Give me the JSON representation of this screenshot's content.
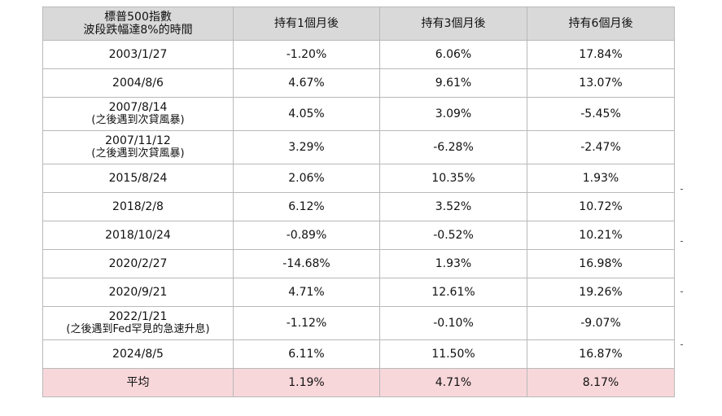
{
  "table": {
    "headers": [
      {
        "line1": "標普500指數",
        "line2": "波段跌幅達8%的時間"
      },
      {
        "line1": "持有1個月後"
      },
      {
        "line1": "持有3個月後"
      },
      {
        "line1": "持有6個月後"
      }
    ],
    "rows": [
      {
        "date": "2003/1/27",
        "note": "",
        "m1": "-1.20%",
        "m3": "6.06%",
        "m6": "17.84%"
      },
      {
        "date": "2004/8/6",
        "note": "",
        "m1": "4.67%",
        "m3": "9.61%",
        "m6": "13.07%"
      },
      {
        "date": "2007/8/14",
        "note": "(之後遇到次貸風暴)",
        "m1": "4.05%",
        "m3": "3.09%",
        "m6": "-5.45%"
      },
      {
        "date": "2007/11/12",
        "note": "(之後遇到次貸風暴)",
        "m1": "3.29%",
        "m3": "-6.28%",
        "m6": "-2.47%"
      },
      {
        "date": "2015/8/24",
        "note": "",
        "m1": "2.06%",
        "m3": "10.35%",
        "m6": "1.93%"
      },
      {
        "date": "2018/2/8",
        "note": "",
        "m1": "6.12%",
        "m3": "3.52%",
        "m6": "10.72%"
      },
      {
        "date": "2018/10/24",
        "note": "",
        "m1": "-0.89%",
        "m3": "-0.52%",
        "m6": "10.21%"
      },
      {
        "date": "2020/2/27",
        "note": "",
        "m1": "-14.68%",
        "m3": "1.93%",
        "m6": "16.98%"
      },
      {
        "date": "2020/9/21",
        "note": "",
        "m1": "4.71%",
        "m3": "12.61%",
        "m6": "19.26%"
      },
      {
        "date": "2022/1/21",
        "note": "(之後遇到Fed罕見的急速升息)",
        "m1": "-1.12%",
        "m3": "-0.10%",
        "m6": "-9.07%"
      },
      {
        "date": "2024/8/5",
        "note": "",
        "m1": "6.11%",
        "m3": "11.50%",
        "m6": "16.87%"
      }
    ],
    "average": {
      "label": "平均",
      "m1": "1.19%",
      "m3": "4.71%",
      "m6": "8.17%"
    }
  },
  "colors": {
    "header_bg": "#d9d9d9",
    "average_bg": "#f8d7da",
    "border": "#b9b9b9"
  }
}
